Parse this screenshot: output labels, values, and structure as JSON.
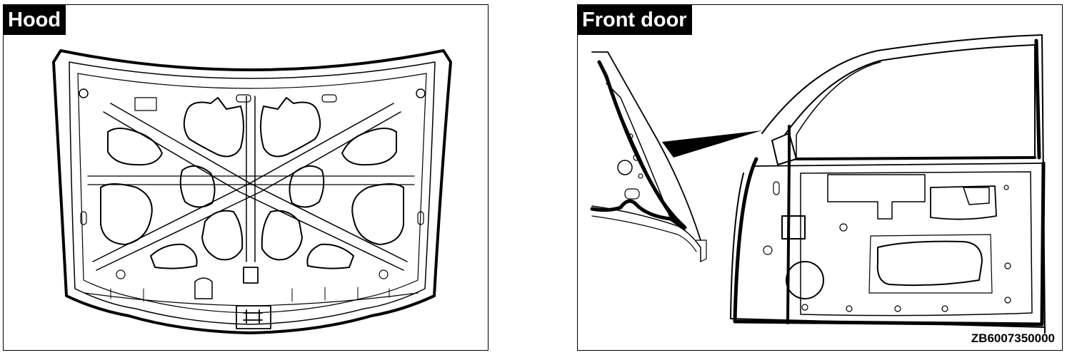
{
  "panels": {
    "hood": {
      "label": "Hood"
    },
    "front_door": {
      "label": "Front door"
    }
  },
  "figure_code": "ZB6007350000"
}
